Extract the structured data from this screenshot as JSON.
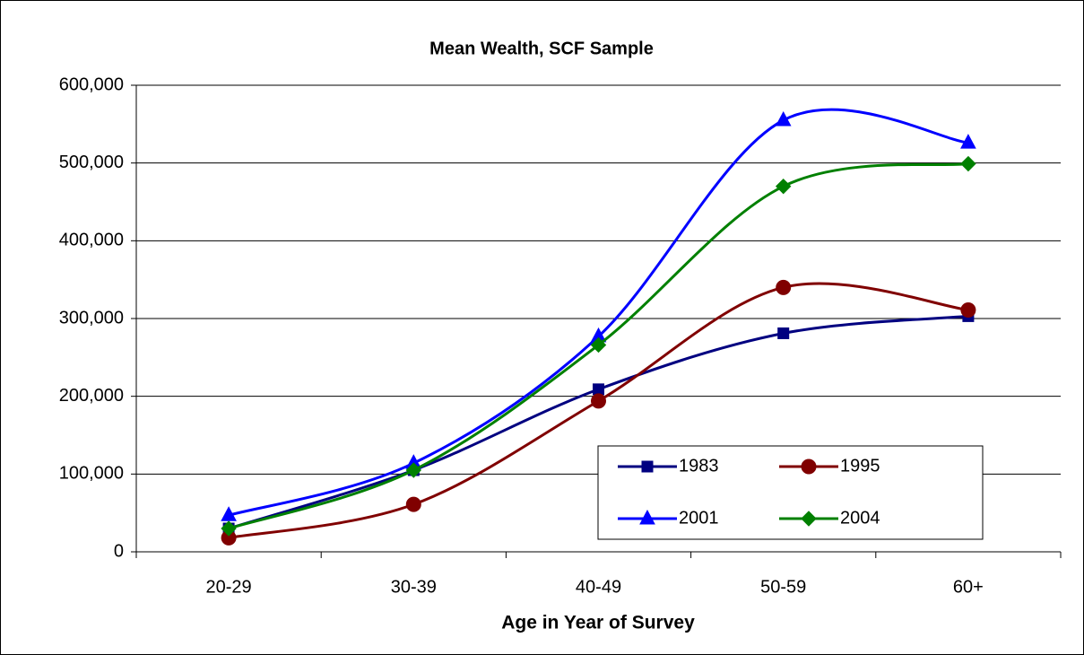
{
  "chart_data": {
    "type": "line",
    "title": "Mean Wealth, SCF Sample",
    "x_label": "Age in Year of Survey",
    "categories": [
      "20-29",
      "30-39",
      "40-49",
      "50-59",
      "60+"
    ],
    "series": [
      {
        "name": "1983",
        "color": "#000080",
        "marker": "square",
        "values": [
          30000,
          105000,
          209000,
          281000,
          303000
        ]
      },
      {
        "name": "1995",
        "color": "#800000",
        "marker": "circle",
        "values": [
          18000,
          61000,
          194000,
          340000,
          311000
        ]
      },
      {
        "name": "2001",
        "color": "#0000ff",
        "marker": "triangle",
        "values": [
          47000,
          114000,
          277000,
          555000,
          526000
        ]
      },
      {
        "name": "2004",
        "color": "#008000",
        "marker": "diamond",
        "values": [
          30000,
          105000,
          266000,
          470000,
          499000
        ]
      }
    ],
    "ylim": [
      0,
      600000
    ],
    "yticks": [
      0,
      {
        "value": 100000,
        "label": "100,000"
      },
      {
        "value": 200000,
        "label": "200,000"
      },
      {
        "value": 300000,
        "label": "300,000"
      },
      {
        "value": 400000,
        "label": "400,000"
      },
      {
        "value": 500000,
        "label": "500,000"
      },
      {
        "value": 600000,
        "label": "600,000"
      }
    ],
    "grid": true,
    "smooth": true,
    "legend": "lower right"
  }
}
